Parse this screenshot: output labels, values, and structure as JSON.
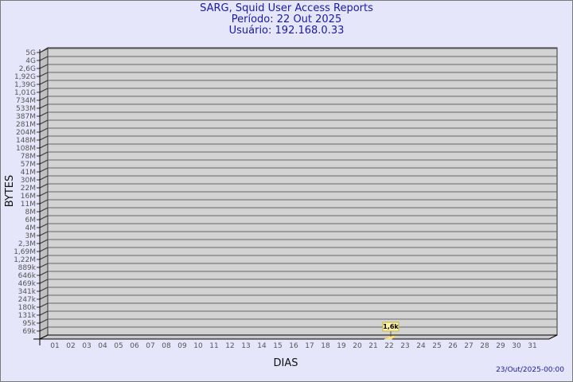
{
  "header": {
    "title": "SARG, Squid User Access Reports",
    "period": "Período: 22 Out 2025",
    "user": "Usuário: 192.168.0.33"
  },
  "footer": {
    "generated": "23/Out/2025-00:00"
  },
  "colors": {
    "background": "#e6e6fa",
    "plot": "#d3d3d3",
    "bar": "#fde68a",
    "title": "#1a1aa0"
  },
  "chart_data": {
    "type": "bar",
    "xlabel": "DIAS",
    "ylabel": "BYTES",
    "y_scale": "log",
    "grid": true,
    "y_ticks": [
      "5G",
      "4G",
      "2,6G",
      "1,92G",
      "1,39G",
      "1,01G",
      "734M",
      "533M",
      "387M",
      "281M",
      "204M",
      "148M",
      "108M",
      "78M",
      "57M",
      "41M",
      "30M",
      "22M",
      "16M",
      "11M",
      "8M",
      "6M",
      "4M",
      "3M",
      "2,3M",
      "1,69M",
      "1,22M",
      "889k",
      "646k",
      "469k",
      "341k",
      "247k",
      "180k",
      "131k",
      "95k",
      "69k"
    ],
    "categories": [
      "01",
      "02",
      "03",
      "04",
      "05",
      "06",
      "07",
      "08",
      "09",
      "10",
      "11",
      "12",
      "13",
      "14",
      "15",
      "16",
      "17",
      "18",
      "19",
      "20",
      "21",
      "22",
      "23",
      "24",
      "25",
      "26",
      "27",
      "28",
      "29",
      "30",
      "31"
    ],
    "values": [
      null,
      null,
      null,
      null,
      null,
      null,
      null,
      null,
      null,
      null,
      null,
      null,
      null,
      null,
      null,
      null,
      null,
      null,
      null,
      null,
      null,
      1600,
      null,
      null,
      null,
      null,
      null,
      null,
      null,
      null,
      null
    ],
    "data_labels": {
      "22": "1,6k"
    }
  }
}
